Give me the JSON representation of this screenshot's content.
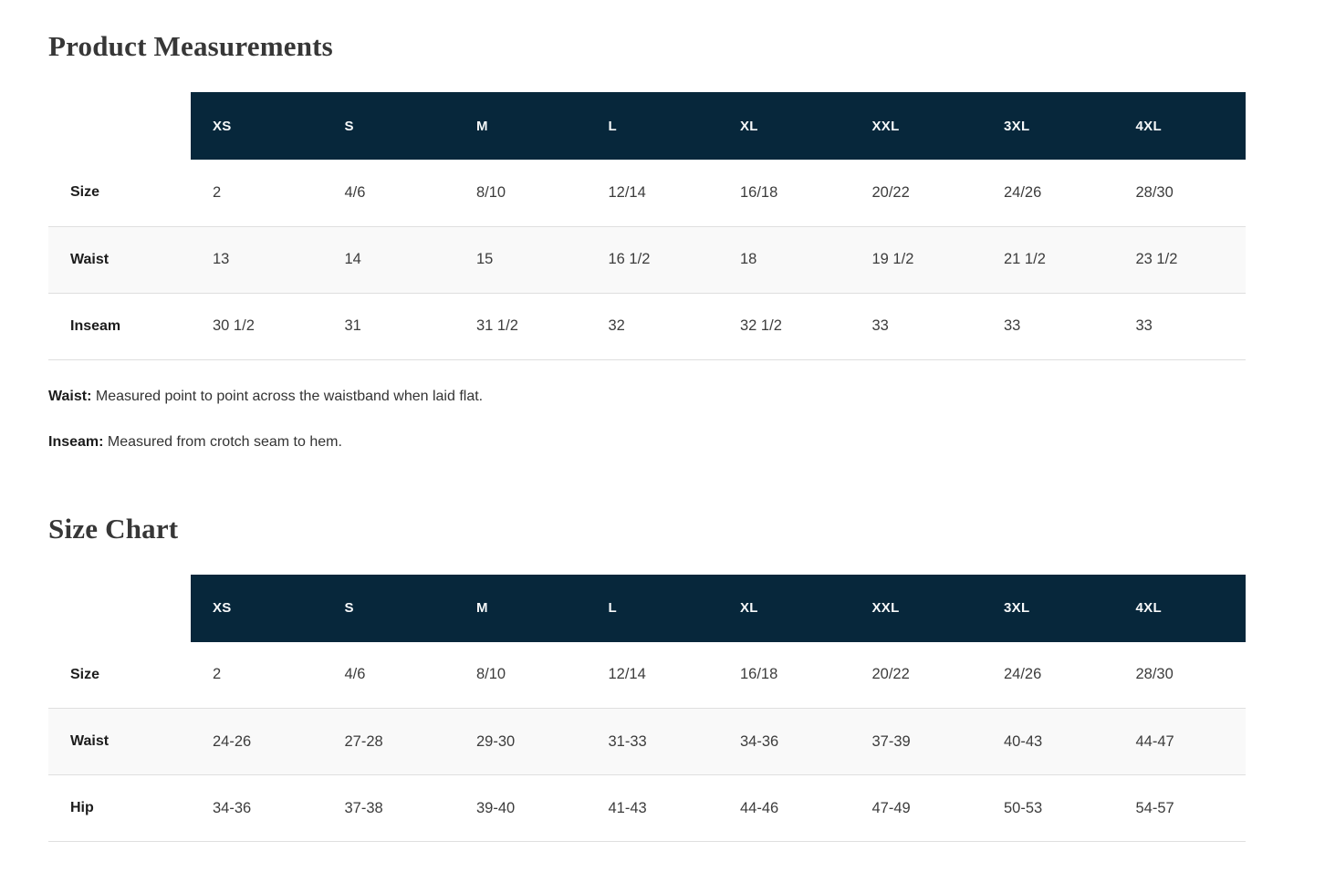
{
  "colors": {
    "header_bg": "#07273b",
    "header_text": "#f7f9fa",
    "row_alt_bg": "#f9f9f9",
    "row_border": "#dfdfdf",
    "title_text": "#373737",
    "body_text": "#3c3c3c"
  },
  "tables": [
    {
      "title": "Product Measurements",
      "columns": [
        "XS",
        "S",
        "M",
        "L",
        "XL",
        "XXL",
        "3XL",
        "4XL"
      ],
      "rows": [
        {
          "label": "Size",
          "values": [
            "2",
            "4/6",
            "8/10",
            "12/14",
            "16/18",
            "20/22",
            "24/26",
            "28/30"
          ]
        },
        {
          "label": "Waist",
          "values": [
            "13",
            "14",
            "15",
            "16 1/2",
            "18",
            "19 1/2",
            "21 1/2",
            "23 1/2"
          ]
        },
        {
          "label": "Inseam",
          "values": [
            "30 1/2",
            "31",
            "31 1/2",
            "32",
            "32 1/2",
            "33",
            "33",
            "33"
          ]
        }
      ]
    },
    {
      "title": "Size Chart",
      "columns": [
        "XS",
        "S",
        "M",
        "L",
        "XL",
        "XXL",
        "3XL",
        "4XL"
      ],
      "rows": [
        {
          "label": "Size",
          "values": [
            "2",
            "4/6",
            "8/10",
            "12/14",
            "16/18",
            "20/22",
            "24/26",
            "28/30"
          ]
        },
        {
          "label": "Waist",
          "values": [
            "24-26",
            "27-28",
            "29-30",
            "31-33",
            "34-36",
            "37-39",
            "40-43",
            "44-47"
          ]
        },
        {
          "label": "Hip",
          "values": [
            "34-36",
            "37-38",
            "39-40",
            "41-43",
            "44-46",
            "47-49",
            "50-53",
            "54-57"
          ]
        }
      ]
    }
  ],
  "notes": [
    {
      "term": "Waist:",
      "text": "Measured point to point across the waistband when laid flat."
    },
    {
      "term": "Inseam:",
      "text": "Measured from crotch seam to hem."
    }
  ]
}
